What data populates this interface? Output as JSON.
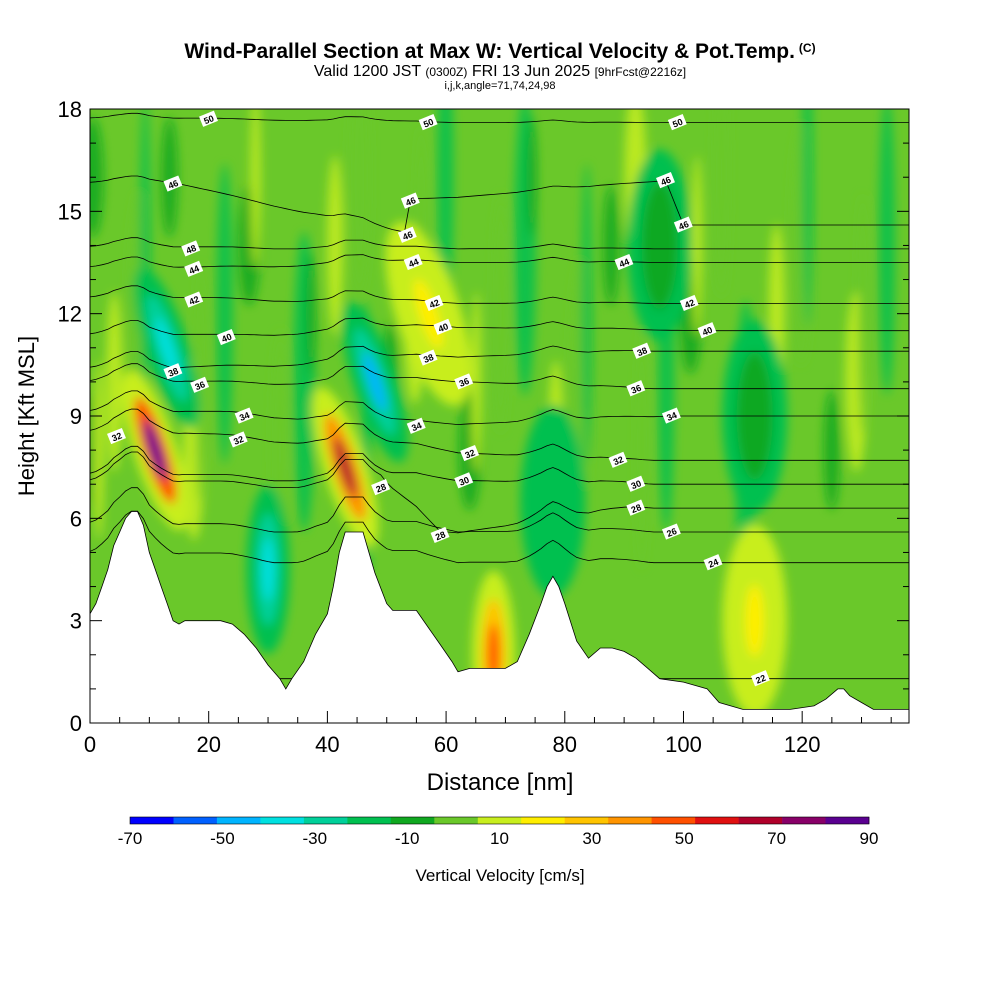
{
  "title": {
    "main": "Wind-Parallel Section at Max W: Vertical Velocity & Pot.Temp.",
    "main_tag": "(C)",
    "valid_prefix": "Valid 1200 JST",
    "valid_utc": "(0300Z)",
    "valid_date": "FRI 13 Jun 2025",
    "forecast": "[9hrFcst@2216z]",
    "indices": "i,j,k,angle=71,74,24,98"
  },
  "chart_data": {
    "type": "heatmap",
    "xlabel": "Distance [nm]",
    "ylabel": "Height [Kft MSL]",
    "xlim": [
      0,
      138
    ],
    "ylim": [
      0,
      18
    ],
    "x_ticks": [
      0,
      20,
      40,
      60,
      80,
      100,
      120
    ],
    "y_ticks": [
      0,
      3,
      6,
      9,
      12,
      15,
      18
    ],
    "grid": false,
    "colorbar": {
      "label": "Vertical Velocity [cm/s]",
      "tick_labels": [
        -70,
        -50,
        -30,
        -10,
        10,
        30,
        50,
        70,
        90
      ],
      "bins": [
        -70,
        -60,
        -50,
        -40,
        -30,
        -20,
        -10,
        0,
        10,
        20,
        30,
        40,
        50,
        60,
        70,
        80,
        90
      ],
      "colors": [
        "#0000ff",
        "#0060ff",
        "#00b4ff",
        "#00e0e0",
        "#00d09a",
        "#00c050",
        "#10a820",
        "#6ac82a",
        "#c8ee1e",
        "#ffee00",
        "#ffc400",
        "#ff9400",
        "#ff5000",
        "#e01010",
        "#b0002a",
        "#880068",
        "#5a0090"
      ]
    },
    "terrain_kft": [
      [
        0,
        3.2
      ],
      [
        1,
        3.5
      ],
      [
        2,
        4.0
      ],
      [
        3,
        4.5
      ],
      [
        4,
        5.2
      ],
      [
        5,
        5.6
      ],
      [
        6,
        6.0
      ],
      [
        7,
        6.2
      ],
      [
        8,
        6.2
      ],
      [
        9,
        5.8
      ],
      [
        10,
        5.0
      ],
      [
        11,
        4.5
      ],
      [
        12,
        4.0
      ],
      [
        13,
        3.5
      ],
      [
        14,
        3.0
      ],
      [
        15,
        2.9
      ],
      [
        16,
        3.0
      ],
      [
        18,
        3.0
      ],
      [
        22,
        3.0
      ],
      [
        24,
        2.9
      ],
      [
        26,
        2.6
      ],
      [
        28,
        2.2
      ],
      [
        30,
        1.7
      ],
      [
        32,
        1.3
      ],
      [
        33,
        1.0
      ],
      [
        34,
        1.3
      ],
      [
        36,
        1.8
      ],
      [
        38,
        2.6
      ],
      [
        40,
        3.2
      ],
      [
        41,
        4.0
      ],
      [
        42,
        5.0
      ],
      [
        43,
        5.6
      ],
      [
        44,
        5.6
      ],
      [
        46,
        5.6
      ],
      [
        47,
        5.0
      ],
      [
        48,
        4.4
      ],
      [
        50,
        3.5
      ],
      [
        51,
        3.3
      ],
      [
        55,
        3.3
      ],
      [
        57,
        2.8
      ],
      [
        59,
        2.3
      ],
      [
        61,
        1.8
      ],
      [
        62,
        1.5
      ],
      [
        64,
        1.6
      ],
      [
        68,
        1.6
      ],
      [
        70,
        1.6
      ],
      [
        72,
        1.8
      ],
      [
        74,
        2.6
      ],
      [
        76,
        3.5
      ],
      [
        77,
        4.0
      ],
      [
        78,
        4.3
      ],
      [
        79,
        4.0
      ],
      [
        80,
        3.5
      ],
      [
        82,
        2.4
      ],
      [
        84,
        1.9
      ],
      [
        86,
        2.2
      ],
      [
        88,
        2.2
      ],
      [
        90,
        2.1
      ],
      [
        92,
        1.9
      ],
      [
        94,
        1.6
      ],
      [
        96,
        1.3
      ],
      [
        100,
        1.2
      ],
      [
        104,
        1.0
      ],
      [
        106,
        0.6
      ],
      [
        110,
        0.4
      ],
      [
        118,
        0.4
      ],
      [
        122,
        0.5
      ],
      [
        124,
        0.7
      ],
      [
        126,
        1.0
      ],
      [
        127,
        1.0
      ],
      [
        128,
        0.8
      ],
      [
        130,
        0.6
      ],
      [
        132,
        0.4
      ],
      [
        138,
        0.4
      ]
    ],
    "velocity_features": [
      {
        "x": 11,
        "y": 8,
        "value": 90
      },
      {
        "x": 13,
        "y": 11,
        "value": -40
      },
      {
        "x": 30,
        "y": 4.5,
        "value": -40
      },
      {
        "x": 43,
        "y": 7.5,
        "value": 70
      },
      {
        "x": 48,
        "y": 10,
        "value": -50
      },
      {
        "x": 57,
        "y": 12,
        "value": 25
      },
      {
        "x": 68,
        "y": 2,
        "value": 50
      },
      {
        "x": 78,
        "y": 6.5,
        "value": -20
      },
      {
        "x": 112,
        "y": 3,
        "value": 25
      },
      {
        "x": 112,
        "y": 9,
        "value": -10
      },
      {
        "x": 96,
        "y": 14,
        "value": -10
      }
    ],
    "theta_contour_labels": [
      {
        "text": "50",
        "x": 20,
        "y": 17.7
      },
      {
        "text": "50",
        "x": 57,
        "y": 17.6
      },
      {
        "text": "50",
        "x": 99,
        "y": 17.6
      },
      {
        "text": "46",
        "x": 14,
        "y": 15.8
      },
      {
        "text": "46",
        "x": 54,
        "y": 15.3
      },
      {
        "text": "46",
        "x": 97,
        "y": 15.9
      },
      {
        "text": "48",
        "x": 17,
        "y": 13.9
      },
      {
        "text": "46",
        "x": 53.5,
        "y": 14.3
      },
      {
        "text": "46",
        "x": 100,
        "y": 14.6
      },
      {
        "text": "44",
        "x": 17.5,
        "y": 13.3
      },
      {
        "text": "44",
        "x": 54.5,
        "y": 13.5
      },
      {
        "text": "44",
        "x": 90,
        "y": 13.5
      },
      {
        "text": "42",
        "x": 17.5,
        "y": 12.4
      },
      {
        "text": "42",
        "x": 58,
        "y": 12.3
      },
      {
        "text": "42",
        "x": 101,
        "y": 12.3
      },
      {
        "text": "40",
        "x": 23,
        "y": 11.3
      },
      {
        "text": "40",
        "x": 59.5,
        "y": 11.6
      },
      {
        "text": "40",
        "x": 104,
        "y": 11.5
      },
      {
        "text": "38",
        "x": 14,
        "y": 10.3
      },
      {
        "text": "38",
        "x": 57,
        "y": 10.7
      },
      {
        "text": "38",
        "x": 93,
        "y": 10.9
      },
      {
        "text": "36",
        "x": 18.5,
        "y": 9.9
      },
      {
        "text": "36",
        "x": 63,
        "y": 10.0
      },
      {
        "text": "36",
        "x": 92,
        "y": 9.8
      },
      {
        "text": "34",
        "x": 26,
        "y": 9.0
      },
      {
        "text": "34",
        "x": 55,
        "y": 8.7
      },
      {
        "text": "34",
        "x": 98,
        "y": 9.0
      },
      {
        "text": "32",
        "x": 4.5,
        "y": 8.4
      },
      {
        "text": "32",
        "x": 25,
        "y": 8.3
      },
      {
        "text": "32",
        "x": 64,
        "y": 7.9
      },
      {
        "text": "32",
        "x": 89,
        "y": 7.7
      },
      {
        "text": "30",
        "x": 63,
        "y": 7.1
      },
      {
        "text": "30",
        "x": 92,
        "y": 7.0
      },
      {
        "text": "28",
        "x": 49,
        "y": 6.9
      },
      {
        "text": "28",
        "x": 59,
        "y": 5.5
      },
      {
        "text": "28",
        "x": 92,
        "y": 6.3
      },
      {
        "text": "26",
        "x": 98,
        "y": 5.6
      },
      {
        "text": "24",
        "x": 105,
        "y": 4.7
      },
      {
        "text": "22",
        "x": 113,
        "y": 1.3
      }
    ]
  }
}
